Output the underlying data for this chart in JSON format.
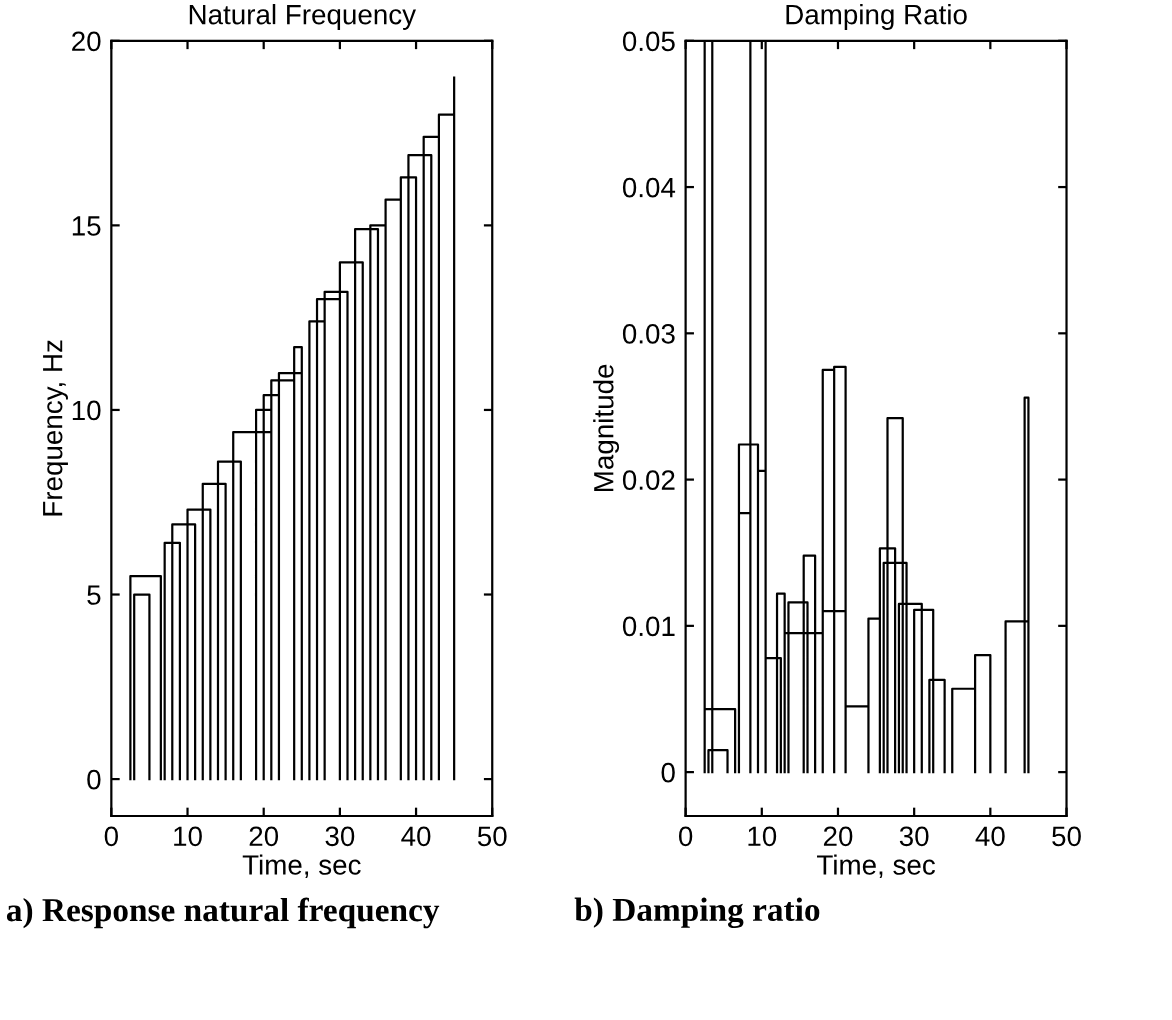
{
  "chart_data": [
    {
      "type": "line",
      "title": "Natural Frequency",
      "xlabel": "Time, sec",
      "ylabel": "Frequency, Hz",
      "annotations": [
        "a) Response natural frequency"
      ],
      "xlim": [
        0,
        50
      ],
      "ylim": [
        -1,
        20
      ],
      "xticks": [
        0,
        10,
        20,
        30,
        40,
        50
      ],
      "yticks": [
        0,
        5,
        10,
        15,
        20
      ],
      "grid": false,
      "legend": false,
      "marker": "none",
      "line_style": "solid",
      "series": [
        {
          "color": "#000000",
          "x": [
            2.5,
            2.5,
            6.5,
            6.5,
            null,
            3,
            3,
            5,
            5,
            null,
            7,
            7,
            9,
            9,
            null,
            8,
            8,
            11,
            11,
            null,
            10,
            10,
            13,
            13,
            null,
            12,
            12,
            15,
            15,
            null,
            14,
            14,
            17,
            17,
            null,
            16,
            16,
            21,
            21,
            null,
            19,
            19,
            21,
            21,
            null,
            20,
            20,
            22,
            22,
            null,
            21,
            21,
            24,
            24,
            null,
            22,
            22,
            25,
            25,
            null,
            24,
            24,
            25,
            25,
            null,
            26,
            26,
            28,
            28,
            null,
            27,
            27,
            30,
            30,
            null,
            28,
            28,
            31,
            31,
            null,
            30,
            30,
            33,
            33,
            null,
            32,
            32,
            35,
            35,
            null,
            34,
            34,
            36,
            36,
            null,
            36,
            36,
            38,
            38,
            null,
            38,
            38,
            40,
            40,
            null,
            39,
            39,
            42,
            42,
            null,
            41,
            41,
            43,
            43,
            null,
            43,
            43,
            45,
            45,
            null,
            45,
            45
          ],
          "values": [
            0,
            5.5,
            5.5,
            0,
            null,
            0,
            5.0,
            5.0,
            0,
            null,
            0,
            6.4,
            6.4,
            0,
            null,
            0,
            6.9,
            6.9,
            0,
            null,
            0,
            7.3,
            7.3,
            0,
            null,
            0,
            8.0,
            8.0,
            0,
            null,
            0,
            8.6,
            8.6,
            0,
            null,
            0,
            9.4,
            9.4,
            0,
            null,
            0,
            10.0,
            10.0,
            0,
            null,
            0,
            10.4,
            10.4,
            0,
            null,
            0,
            10.8,
            10.8,
            0,
            null,
            0,
            11.0,
            11.0,
            0,
            null,
            0,
            11.7,
            11.7,
            0,
            null,
            0,
            12.4,
            12.4,
            0,
            null,
            0,
            13.0,
            13.0,
            0,
            null,
            0,
            13.2,
            13.2,
            0,
            null,
            0,
            14.0,
            14.0,
            0,
            null,
            0,
            14.9,
            14.9,
            0,
            null,
            0,
            15.0,
            15.0,
            0,
            null,
            0,
            15.7,
            15.7,
            0,
            null,
            0,
            16.3,
            16.3,
            0,
            null,
            0,
            16.9,
            16.9,
            0,
            null,
            0,
            17.4,
            17.4,
            0,
            null,
            0,
            18.0,
            18.0,
            0,
            null,
            0,
            19.0
          ]
        }
      ]
    },
    {
      "type": "line",
      "title": "Damping Ratio",
      "xlabel": "Time, sec",
      "ylabel": "Magnitude",
      "annotations": [
        "b) Damping ratio"
      ],
      "xlim": [
        0,
        50
      ],
      "ylim": [
        -0.003,
        0.05
      ],
      "xticks": [
        0,
        10,
        20,
        30,
        40,
        50
      ],
      "yticks": [
        0,
        0.01,
        0.02,
        0.03,
        0.04,
        0.05
      ],
      "grid": false,
      "legend": false,
      "marker": "none",
      "line_style": "solid",
      "series": [
        {
          "color": "#000000",
          "x": [
            2.5,
            2.5,
            3.5,
            3.5,
            null,
            2.5,
            2.5,
            6.5,
            6.5,
            null,
            3,
            3,
            5.5,
            5.5,
            null,
            8.5,
            8.5,
            10.5,
            10.5,
            null,
            7,
            7,
            9.5,
            9.5,
            null,
            9.5,
            9.5,
            10.5,
            10.5,
            null,
            7,
            7,
            8.5,
            8.5,
            null,
            10.5,
            10.5,
            12.5,
            12.5,
            null,
            12,
            12,
            13,
            13,
            null,
            13.5,
            13.5,
            16,
            16,
            null,
            13,
            13,
            18,
            18,
            null,
            15.5,
            15.5,
            17,
            17,
            null,
            18,
            18,
            19.5,
            19.5,
            null,
            19.5,
            19.5,
            21,
            21,
            null,
            18,
            18,
            21,
            21,
            null,
            21,
            21,
            24,
            24,
            null,
            24,
            24,
            25.5,
            25.5,
            null,
            25.5,
            25.5,
            27.5,
            27.5,
            null,
            26,
            26,
            29,
            29,
            null,
            26.5,
            26.5,
            28.5,
            28.5,
            null,
            28,
            28,
            31,
            31,
            null,
            30,
            30,
            32.5,
            32.5,
            null,
            32,
            32,
            34,
            34,
            null,
            35,
            35,
            38,
            38,
            null,
            38,
            38,
            40,
            40,
            null,
            42,
            42,
            45,
            45,
            null,
            44.5,
            44.5,
            45,
            45
          ],
          "values": [
            0,
            0.05,
            0.05,
            0,
            null,
            0,
            0.0043,
            0.0043,
            0,
            null,
            0,
            0.0015,
            0.0015,
            0,
            null,
            0,
            0.05,
            0.05,
            0,
            null,
            0,
            0.0224,
            0.0224,
            0,
            null,
            0,
            0.0206,
            0.0206,
            0,
            null,
            0,
            0.0177,
            0.0177,
            0,
            null,
            0,
            0.0078,
            0.0078,
            0,
            null,
            0,
            0.0122,
            0.0122,
            0,
            null,
            0,
            0.0116,
            0.0116,
            0,
            null,
            0,
            0.0095,
            0.0095,
            0,
            null,
            0,
            0.0148,
            0.0148,
            0,
            null,
            0,
            0.0275,
            0.0275,
            0,
            null,
            0,
            0.0277,
            0.0277,
            0,
            null,
            0,
            0.011,
            0.011,
            0,
            null,
            0,
            0.0045,
            0.0045,
            0,
            null,
            0,
            0.0105,
            0.0105,
            0,
            null,
            0,
            0.0153,
            0.0153,
            0,
            null,
            0,
            0.0143,
            0.0143,
            0,
            null,
            0,
            0.0242,
            0.0242,
            0,
            null,
            0,
            0.0115,
            0.0115,
            0,
            null,
            0,
            0.0111,
            0.0111,
            0,
            null,
            0,
            0.0063,
            0.0063,
            0,
            null,
            0,
            0.0057,
            0.0057,
            0,
            null,
            0,
            0.008,
            0.008,
            0,
            null,
            0,
            0.0103,
            0.0103,
            0,
            null,
            0,
            0.0256,
            0.0256,
            0
          ]
        }
      ]
    }
  ]
}
